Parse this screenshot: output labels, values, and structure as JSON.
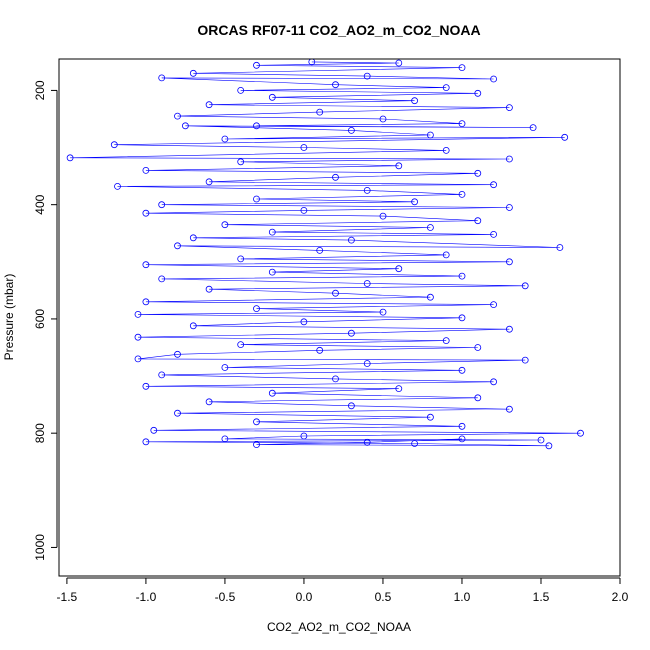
{
  "chart_data": {
    "type": "scatter",
    "title": "ORCAS RF07-11 CO2_AO2_m_CO2_NOAA",
    "xlabel": "CO2_AO2_m_CO2_NOAA",
    "ylabel": "Pressure (mbar)",
    "xlim": [
      -1.55,
      2.0
    ],
    "ylim": [
      1050,
      145
    ],
    "y_reversed": true,
    "x_ticks": [
      -1.5,
      -1.0,
      -0.5,
      0.0,
      0.5,
      1.0,
      1.5,
      2.0
    ],
    "x_tick_labels": [
      "-1.5",
      "-1.0",
      "-0.5",
      "0.0",
      "0.5",
      "1.0",
      "1.5",
      "2.0"
    ],
    "y_ticks": [
      200,
      400,
      600,
      800,
      1000
    ],
    "y_tick_labels": [
      "200",
      "400",
      "600",
      "800",
      "1000"
    ],
    "grid": false,
    "legend": "none",
    "series_color": "#0000ff",
    "marker": "open-circle",
    "connected_lines": true,
    "series": [
      {
        "points": [
          [
            0.05,
            150
          ],
          [
            0.6,
            152
          ],
          [
            -0.3,
            156
          ],
          [
            1.0,
            160
          ],
          [
            -0.7,
            170
          ],
          [
            0.4,
            175
          ],
          [
            1.2,
            180
          ],
          [
            -0.9,
            178
          ],
          [
            0.2,
            190
          ],
          [
            0.9,
            195
          ],
          [
            -0.4,
            200
          ],
          [
            1.1,
            205
          ],
          [
            -0.2,
            212
          ],
          [
            0.7,
            218
          ],
          [
            -0.6,
            225
          ],
          [
            1.3,
            230
          ],
          [
            0.1,
            238
          ],
          [
            -0.8,
            245
          ],
          [
            0.5,
            250
          ],
          [
            1.0,
            258
          ],
          [
            -0.3,
            262
          ],
          [
            1.45,
            265
          ],
          [
            -0.75,
            262
          ],
          [
            0.3,
            270
          ],
          [
            0.8,
            278
          ],
          [
            -0.5,
            285
          ],
          [
            1.65,
            282
          ],
          [
            -1.2,
            295
          ],
          [
            0.0,
            300
          ],
          [
            0.9,
            305
          ],
          [
            -1.48,
            318
          ],
          [
            1.3,
            320
          ],
          [
            -0.4,
            325
          ],
          [
            0.6,
            332
          ],
          [
            -1.0,
            340
          ],
          [
            1.1,
            345
          ],
          [
            0.2,
            352
          ],
          [
            -0.6,
            360
          ],
          [
            1.2,
            365
          ],
          [
            -1.18,
            368
          ],
          [
            0.4,
            375
          ],
          [
            1.0,
            382
          ],
          [
            -0.3,
            390
          ],
          [
            0.7,
            395
          ],
          [
            -0.9,
            400
          ],
          [
            1.3,
            405
          ],
          [
            0.0,
            410
          ],
          [
            -1.0,
            415
          ],
          [
            0.5,
            420
          ],
          [
            1.1,
            428
          ],
          [
            -0.5,
            435
          ],
          [
            0.8,
            440
          ],
          [
            -0.2,
            448
          ],
          [
            1.2,
            452
          ],
          [
            -0.7,
            458
          ],
          [
            0.3,
            462
          ],
          [
            1.62,
            475
          ],
          [
            -0.8,
            472
          ],
          [
            0.1,
            480
          ],
          [
            0.9,
            488
          ],
          [
            -0.4,
            495
          ],
          [
            1.3,
            500
          ],
          [
            -1.0,
            505
          ],
          [
            0.6,
            512
          ],
          [
            -0.2,
            518
          ],
          [
            1.0,
            525
          ],
          [
            -0.9,
            530
          ],
          [
            0.4,
            538
          ],
          [
            1.4,
            542
          ],
          [
            -0.6,
            548
          ],
          [
            0.2,
            555
          ],
          [
            0.8,
            562
          ],
          [
            -1.0,
            570
          ],
          [
            1.2,
            575
          ],
          [
            -0.3,
            582
          ],
          [
            0.5,
            588
          ],
          [
            -1.05,
            592
          ],
          [
            1.0,
            598
          ],
          [
            0.0,
            605
          ],
          [
            -0.7,
            612
          ],
          [
            1.3,
            618
          ],
          [
            0.3,
            625
          ],
          [
            -1.05,
            632
          ],
          [
            0.9,
            638
          ],
          [
            -0.4,
            645
          ],
          [
            1.1,
            650
          ],
          [
            0.1,
            655
          ],
          [
            -0.8,
            662
          ],
          [
            -1.05,
            670
          ],
          [
            1.4,
            672
          ],
          [
            0.4,
            678
          ],
          [
            -0.5,
            685
          ],
          [
            1.0,
            690
          ],
          [
            -0.9,
            698
          ],
          [
            0.2,
            705
          ],
          [
            1.2,
            710
          ],
          [
            -1.0,
            718
          ],
          [
            0.6,
            722
          ],
          [
            -0.2,
            730
          ],
          [
            1.1,
            738
          ],
          [
            -0.6,
            745
          ],
          [
            0.3,
            752
          ],
          [
            1.3,
            758
          ],
          [
            -0.8,
            765
          ],
          [
            0.8,
            772
          ],
          [
            -0.3,
            780
          ],
          [
            1.0,
            788
          ],
          [
            -0.95,
            795
          ],
          [
            1.75,
            800
          ],
          [
            0.0,
            805
          ],
          [
            -0.5,
            810
          ],
          [
            1.5,
            812
          ],
          [
            -1.0,
            815
          ],
          [
            0.7,
            818
          ],
          [
            1.55,
            822
          ],
          [
            -0.3,
            820
          ],
          [
            0.4,
            816
          ],
          [
            1.0,
            810
          ]
        ]
      }
    ]
  }
}
